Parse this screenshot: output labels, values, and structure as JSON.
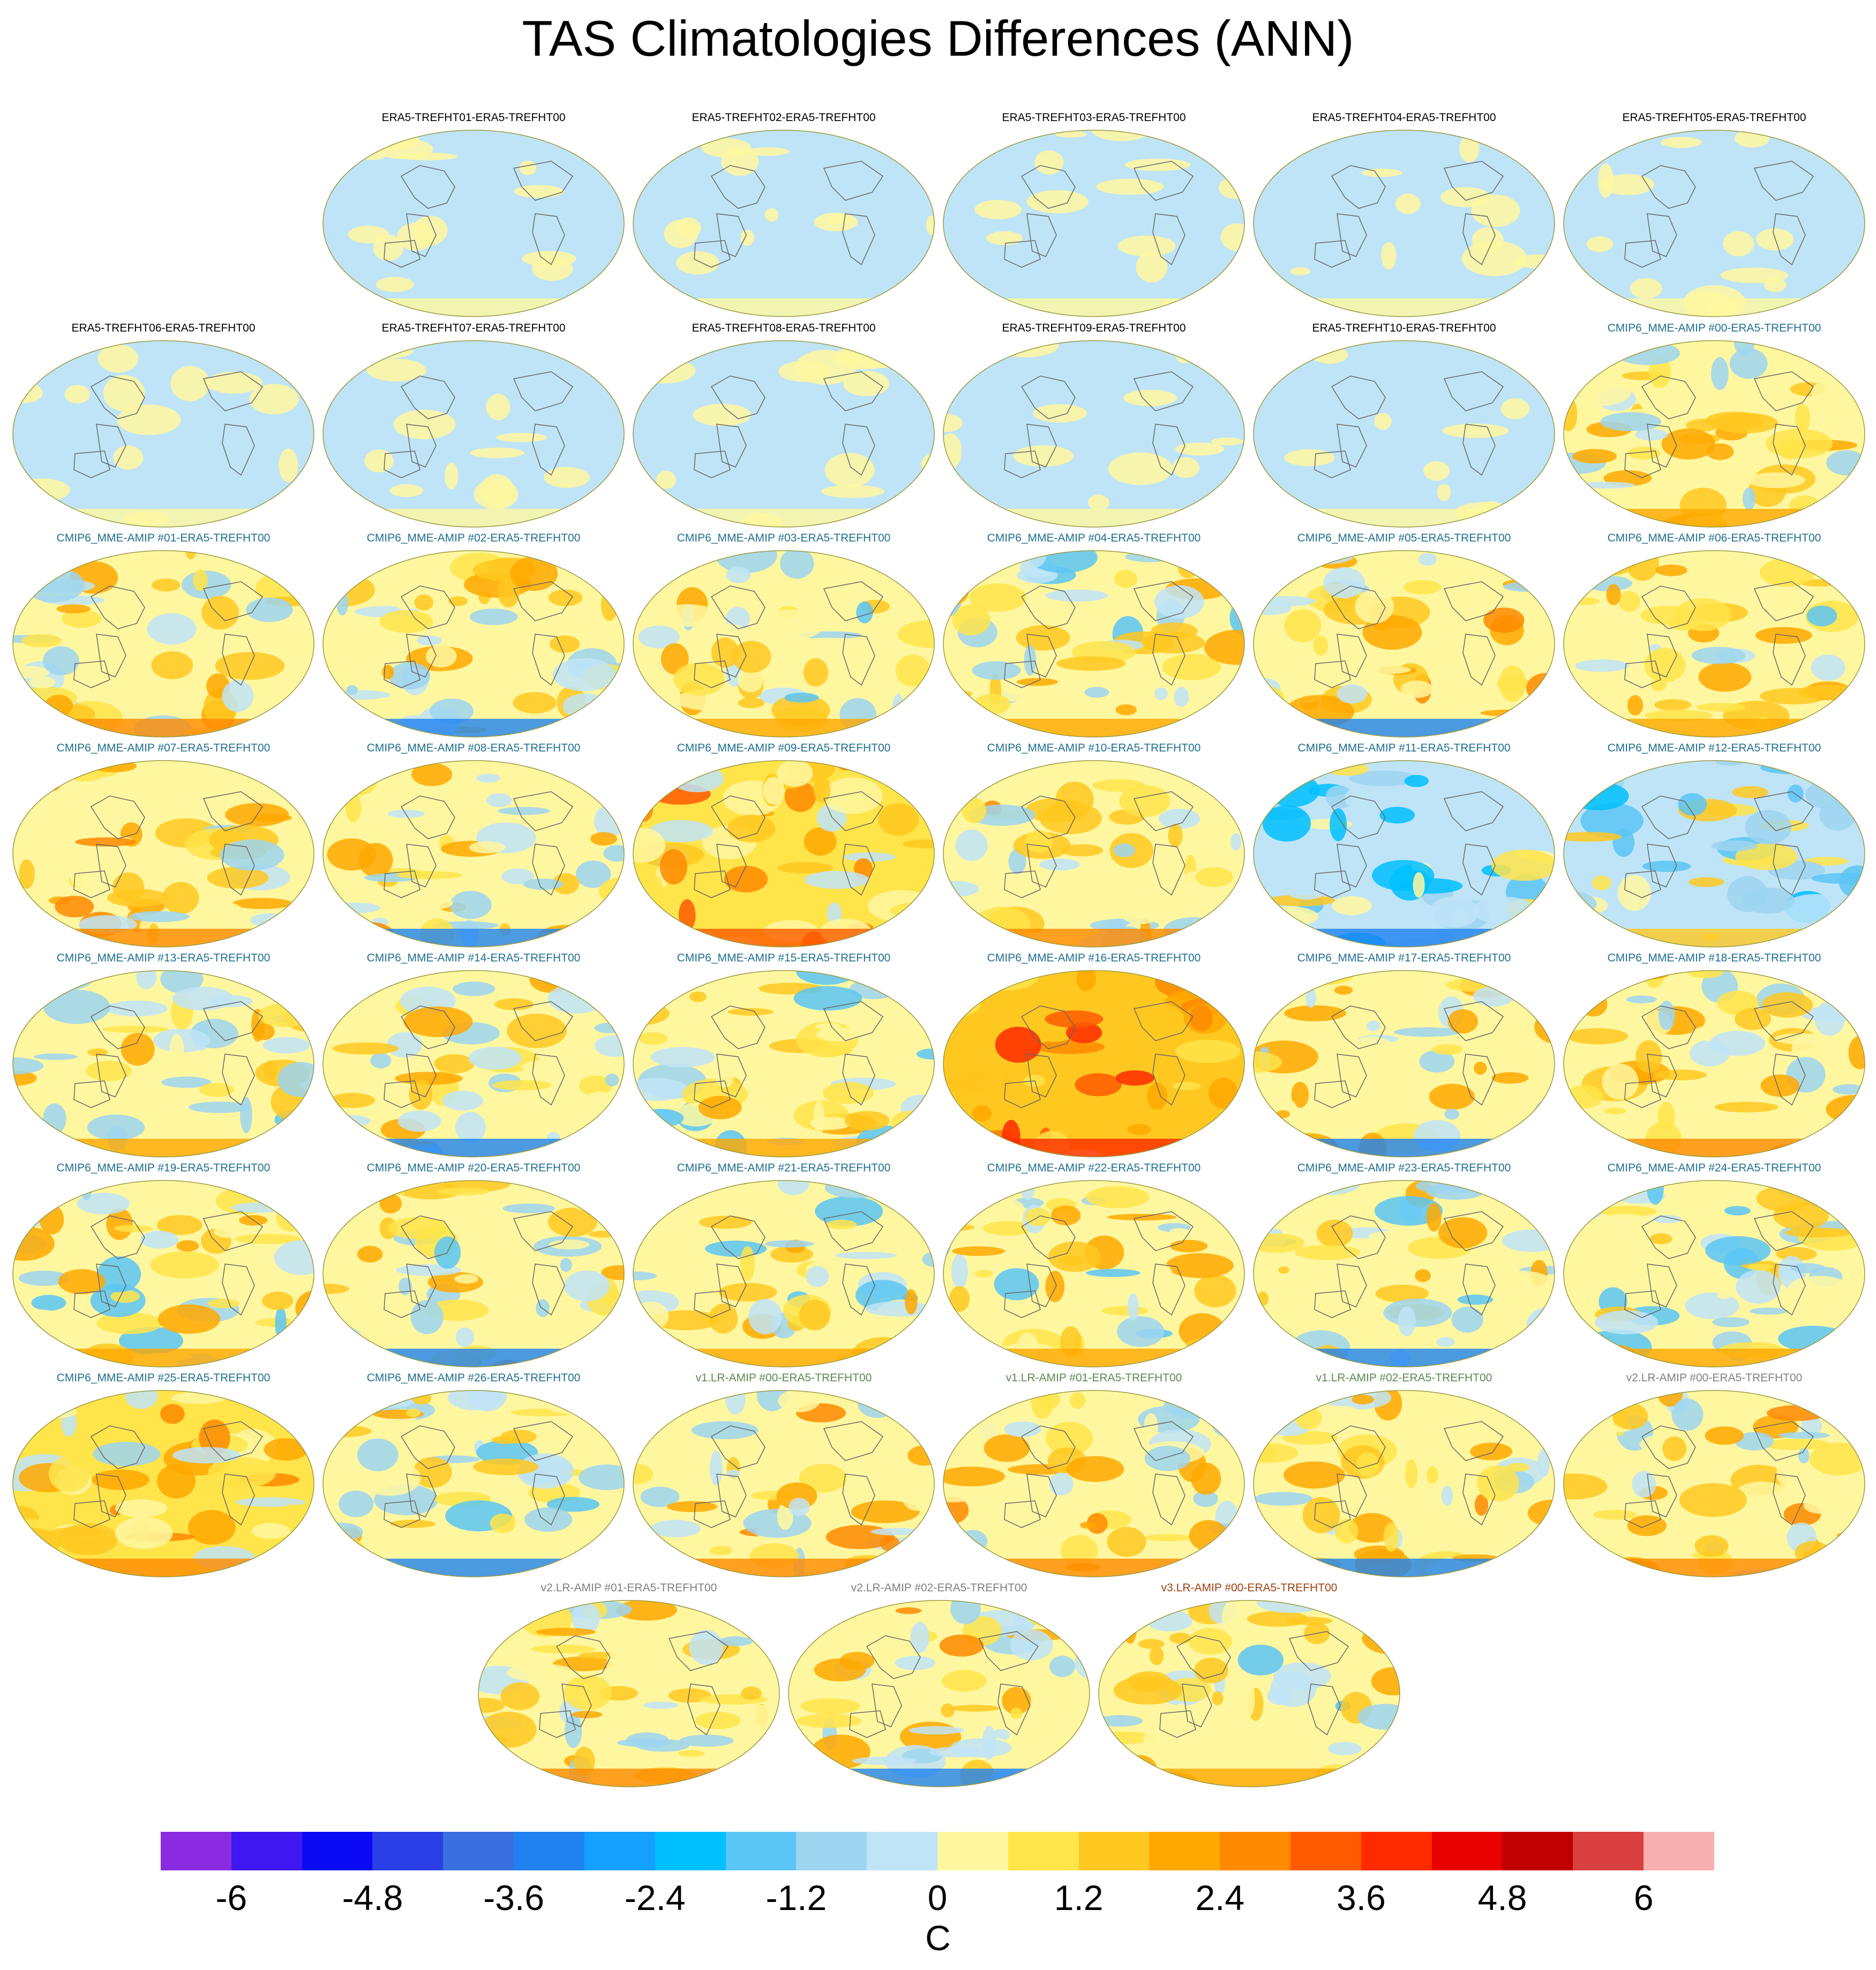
{
  "title": "TAS Climatologies Differences (ANN)",
  "colorbar": {
    "units": "C",
    "colors": [
      "#8a2be2",
      "#3f17f0",
      "#0a0af5",
      "#2b3fe6",
      "#3a6fe0",
      "#1f82f0",
      "#14a0ff",
      "#00c0ff",
      "#5bc6f5",
      "#9ed5f0",
      "#bfe4f7",
      "#fff7a0",
      "#ffe44a",
      "#ffc820",
      "#ffa800",
      "#ff8a00",
      "#ff5a00",
      "#ff2a00",
      "#e90000",
      "#c00000",
      "#d94040",
      "#f8b0b0"
    ],
    "tick_labels": [
      "-6",
      "-4.8",
      "-3.6",
      "-2.4",
      "-1.2",
      "0",
      "1.2",
      "2.4",
      "3.6",
      "4.8",
      "6"
    ]
  },
  "label_colors": {
    "era5": "#000000",
    "cmip": "#1f6f90",
    "v1": "#5a8a50",
    "v2": "#808080",
    "v3": "#a04010"
  },
  "panels": [
    {
      "title": "ERA5-TREFHT01-ERA5-TREFHT00",
      "group": "era5",
      "level": 0.0
    },
    {
      "title": "ERA5-TREFHT02-ERA5-TREFHT00",
      "group": "era5",
      "level": 0.0
    },
    {
      "title": "ERA5-TREFHT03-ERA5-TREFHT00",
      "group": "era5",
      "level": 0.0
    },
    {
      "title": "ERA5-TREFHT04-ERA5-TREFHT00",
      "group": "era5",
      "level": 0.0
    },
    {
      "title": "ERA5-TREFHT05-ERA5-TREFHT00",
      "group": "era5",
      "level": 0.0
    },
    {
      "title": "ERA5-TREFHT06-ERA5-TREFHT00",
      "group": "era5",
      "level": 0.0
    },
    {
      "title": "ERA5-TREFHT07-ERA5-TREFHT00",
      "group": "era5",
      "level": 0.0
    },
    {
      "title": "ERA5-TREFHT08-ERA5-TREFHT00",
      "group": "era5",
      "level": 0.0
    },
    {
      "title": "ERA5-TREFHT09-ERA5-TREFHT00",
      "group": "era5",
      "level": 0.0
    },
    {
      "title": "ERA5-TREFHT10-ERA5-TREFHT00",
      "group": "era5",
      "level": 0.0
    },
    {
      "title": "CMIP6_MME-AMIP  #00-ERA5-TREFHT00",
      "group": "cmip",
      "level": 0.5
    },
    {
      "title": "CMIP6_MME-AMIP  #01-ERA5-TREFHT00",
      "group": "cmip",
      "level": 0.6
    },
    {
      "title": "CMIP6_MME-AMIP  #02-ERA5-TREFHT00",
      "group": "cmip",
      "level": 0.7
    },
    {
      "title": "CMIP6_MME-AMIP  #03-ERA5-TREFHT00",
      "group": "cmip",
      "level": 0.4
    },
    {
      "title": "CMIP6_MME-AMIP  #04-ERA5-TREFHT00",
      "group": "cmip",
      "level": 0.4
    },
    {
      "title": "CMIP6_MME-AMIP  #05-ERA5-TREFHT00",
      "group": "cmip",
      "level": 0.9
    },
    {
      "title": "CMIP6_MME-AMIP  #06-ERA5-TREFHT00",
      "group": "cmip",
      "level": 0.4
    },
    {
      "title": "CMIP6_MME-AMIP  #07-ERA5-TREFHT00",
      "group": "cmip",
      "level": 0.7
    },
    {
      "title": "CMIP6_MME-AMIP  #08-ERA5-TREFHT00",
      "group": "cmip",
      "level": 0.8
    },
    {
      "title": "CMIP6_MME-AMIP  #09-ERA5-TREFHT00",
      "group": "cmip",
      "level": 1.3
    },
    {
      "title": "CMIP6_MME-AMIP  #10-ERA5-TREFHT00",
      "group": "cmip",
      "level": 0.7
    },
    {
      "title": "CMIP6_MME-AMIP  #11-ERA5-TREFHT00",
      "group": "cmip",
      "level": -0.5
    },
    {
      "title": "CMIP6_MME-AMIP  #12-ERA5-TREFHT00",
      "group": "cmip",
      "level": -0.4
    },
    {
      "title": "CMIP6_MME-AMIP  #13-ERA5-TREFHT00",
      "group": "cmip",
      "level": 0.5
    },
    {
      "title": "CMIP6_MME-AMIP  #14-ERA5-TREFHT00",
      "group": "cmip",
      "level": 0.5
    },
    {
      "title": "CMIP6_MME-AMIP  #15-ERA5-TREFHT00",
      "group": "cmip",
      "level": 0.1
    },
    {
      "title": "CMIP6_MME-AMIP  #16-ERA5-TREFHT00",
      "group": "cmip",
      "level": 2.2
    },
    {
      "title": "CMIP6_MME-AMIP  #17-ERA5-TREFHT00",
      "group": "cmip",
      "level": 0.7
    },
    {
      "title": "CMIP6_MME-AMIP  #18-ERA5-TREFHT00",
      "group": "cmip",
      "level": 0.6
    },
    {
      "title": "CMIP6_MME-AMIP  #19-ERA5-TREFHT00",
      "group": "cmip",
      "level": 0.3
    },
    {
      "title": "CMIP6_MME-AMIP  #20-ERA5-TREFHT00",
      "group": "cmip",
      "level": 0.4
    },
    {
      "title": "CMIP6_MME-AMIP  #21-ERA5-TREFHT00",
      "group": "cmip",
      "level": 0.3
    },
    {
      "title": "CMIP6_MME-AMIP  #22-ERA5-TREFHT00",
      "group": "cmip",
      "level": 0.4
    },
    {
      "title": "CMIP6_MME-AMIP  #23-ERA5-TREFHT00",
      "group": "cmip",
      "level": 0.3
    },
    {
      "title": "CMIP6_MME-AMIP  #24-ERA5-TREFHT00",
      "group": "cmip",
      "level": 0.1
    },
    {
      "title": "CMIP6_MME-AMIP  #25-ERA5-TREFHT00",
      "group": "cmip",
      "level": 1.0
    },
    {
      "title": "CMIP6_MME-AMIP  #26-ERA5-TREFHT00",
      "group": "cmip",
      "level": 0.2
    },
    {
      "title": "v1.LR-AMIP  #00-ERA5-TREFHT00",
      "group": "v1",
      "level": 0.8
    },
    {
      "title": "v1.LR-AMIP  #01-ERA5-TREFHT00",
      "group": "v1",
      "level": 0.8
    },
    {
      "title": "v1.LR-AMIP  #02-ERA5-TREFHT00",
      "group": "v1",
      "level": 0.8
    },
    {
      "title": "v2.LR-AMIP  #00-ERA5-TREFHT00",
      "group": "v2",
      "level": 0.8
    },
    {
      "title": "v2.LR-AMIP  #01-ERA5-TREFHT00",
      "group": "v2",
      "level": 0.6
    },
    {
      "title": "v2.LR-AMIP  #02-ERA5-TREFHT00",
      "group": "v2",
      "level": 0.7
    },
    {
      "title": "v3.LR-AMIP  #00-ERA5-TREFHT00",
      "group": "v3",
      "level": 0.4
    }
  ]
}
